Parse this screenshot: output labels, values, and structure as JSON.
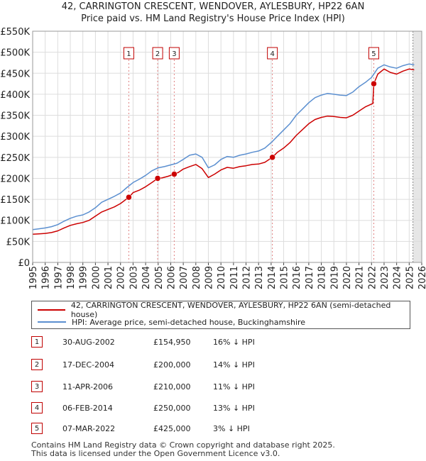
{
  "title_line1": "42, CARRINGTON CRESCENT, WENDOVER, AYLESBURY, HP22 6AN",
  "title_line2": "Price paid vs. HM Land Registry's House Price Index (HPI)",
  "legend": {
    "red_label": "42, CARRINGTON CRESCENT, WENDOVER, AYLESBURY, HP22 6AN (semi-detached house)",
    "blue_label": "HPI: Average price, semi-detached house, Buckinghamshire"
  },
  "colors": {
    "red": "#cc0000",
    "blue": "#5b8fd0",
    "grid": "#dddddd",
    "band": "#eef2fa"
  },
  "sales": [
    {
      "num": "1",
      "date": "30-AUG-2002",
      "price": "£154,950",
      "pct": "16% ↓ HPI",
      "year": 2002.66,
      "value": 154950
    },
    {
      "num": "2",
      "date": "17-DEC-2004",
      "price": "£200,000",
      "pct": "14% ↓ HPI",
      "year": 2004.96,
      "value": 200000
    },
    {
      "num": "3",
      "date": "11-APR-2006",
      "price": "£210,000",
      "pct": "11% ↓ HPI",
      "year": 2006.28,
      "value": 210000
    },
    {
      "num": "4",
      "date": "06-FEB-2014",
      "price": "£250,000",
      "pct": "13% ↓ HPI",
      "year": 2014.1,
      "value": 250000
    },
    {
      "num": "5",
      "date": "07-MAR-2022",
      "price": "£425,000",
      "pct": "3% ↓ HPI",
      "year": 2022.18,
      "value": 425000
    }
  ],
  "footer_line1": "Contains HM Land Registry data © Crown copyright and database right 2025.",
  "footer_line2": "This data is licensed under the Open Government Licence v3.0.",
  "chart_data": {
    "type": "line",
    "title": "Price paid vs. HM Land Registry's House Price Index (HPI)",
    "xlim": [
      1995,
      2026
    ],
    "ylim": [
      0,
      550000
    ],
    "x_ticks": [
      "1995",
      "1996",
      "1997",
      "1998",
      "1999",
      "2000",
      "2001",
      "2002",
      "2003",
      "2004",
      "2005",
      "2006",
      "2007",
      "2008",
      "2009",
      "2010",
      "2011",
      "2012",
      "2013",
      "2014",
      "2015",
      "2016",
      "2017",
      "2018",
      "2019",
      "2020",
      "2021",
      "2022",
      "2023",
      "2024",
      "2025",
      "2026"
    ],
    "y_ticks": [
      {
        "value": 0,
        "label": "£0"
      },
      {
        "value": 50000,
        "label": "£50K"
      },
      {
        "value": 100000,
        "label": "£100K"
      },
      {
        "value": 150000,
        "label": "£150K"
      },
      {
        "value": 200000,
        "label": "£200K"
      },
      {
        "value": 250000,
        "label": "£250K"
      },
      {
        "value": 300000,
        "label": "£300K"
      },
      {
        "value": 350000,
        "label": "£350K"
      },
      {
        "value": 400000,
        "label": "£400K"
      },
      {
        "value": 450000,
        "label": "£450K"
      },
      {
        "value": 500000,
        "label": "£500K"
      },
      {
        "value": 550000,
        "label": "£550K"
      }
    ],
    "shade_from_year": 2025.3,
    "series": [
      {
        "name": "HPI: Average price, semi-detached house, Buckinghamshire",
        "color": "#5b8fd0",
        "points": [
          [
            1995,
            78000
          ],
          [
            1995.5,
            80000
          ],
          [
            1996,
            82000
          ],
          [
            1996.5,
            85000
          ],
          [
            1997,
            90000
          ],
          [
            1997.5,
            98000
          ],
          [
            1998,
            105000
          ],
          [
            1998.5,
            110000
          ],
          [
            1999,
            113000
          ],
          [
            1999.5,
            120000
          ],
          [
            2000,
            130000
          ],
          [
            2000.5,
            143000
          ],
          [
            2001,
            150000
          ],
          [
            2001.5,
            157000
          ],
          [
            2002,
            165000
          ],
          [
            2002.5,
            178000
          ],
          [
            2003,
            190000
          ],
          [
            2003.5,
            198000
          ],
          [
            2004,
            207000
          ],
          [
            2004.5,
            218000
          ],
          [
            2005,
            225000
          ],
          [
            2005.5,
            228000
          ],
          [
            2006,
            232000
          ],
          [
            2006.5,
            236000
          ],
          [
            2007,
            245000
          ],
          [
            2007.5,
            255000
          ],
          [
            2008,
            258000
          ],
          [
            2008.5,
            250000
          ],
          [
            2009,
            225000
          ],
          [
            2009.5,
            232000
          ],
          [
            2010,
            245000
          ],
          [
            2010.5,
            252000
          ],
          [
            2011,
            250000
          ],
          [
            2011.5,
            255000
          ],
          [
            2012,
            258000
          ],
          [
            2012.5,
            262000
          ],
          [
            2013,
            265000
          ],
          [
            2013.5,
            272000
          ],
          [
            2014,
            285000
          ],
          [
            2014.5,
            300000
          ],
          [
            2015,
            315000
          ],
          [
            2015.5,
            330000
          ],
          [
            2016,
            350000
          ],
          [
            2016.5,
            365000
          ],
          [
            2017,
            380000
          ],
          [
            2017.5,
            392000
          ],
          [
            2018,
            398000
          ],
          [
            2018.5,
            402000
          ],
          [
            2019,
            400000
          ],
          [
            2019.5,
            398000
          ],
          [
            2020,
            397000
          ],
          [
            2020.5,
            405000
          ],
          [
            2021,
            418000
          ],
          [
            2021.5,
            428000
          ],
          [
            2022,
            440000
          ],
          [
            2022.5,
            462000
          ],
          [
            2023,
            470000
          ],
          [
            2023.5,
            465000
          ],
          [
            2024,
            462000
          ],
          [
            2024.5,
            468000
          ],
          [
            2025,
            472000
          ],
          [
            2025.4,
            470000
          ]
        ]
      },
      {
        "name": "42, CARRINGTON CRESCENT, WENDOVER, AYLESBURY, HP22 6AN (semi-detached house)",
        "color": "#cc0000",
        "points": [
          [
            1995,
            67000
          ],
          [
            1995.5,
            68000
          ],
          [
            1996,
            69000
          ],
          [
            1996.5,
            71000
          ],
          [
            1997,
            75000
          ],
          [
            1997.5,
            82000
          ],
          [
            1998,
            88000
          ],
          [
            1998.5,
            92000
          ],
          [
            1999,
            95000
          ],
          [
            1999.5,
            100000
          ],
          [
            2000,
            110000
          ],
          [
            2000.5,
            120000
          ],
          [
            2001,
            126000
          ],
          [
            2001.5,
            132000
          ],
          [
            2002,
            140000
          ],
          [
            2002.66,
            154950
          ],
          [
            2003,
            166000
          ],
          [
            2003.5,
            172000
          ],
          [
            2004,
            180000
          ],
          [
            2004.5,
            190000
          ],
          [
            2004.96,
            200000
          ],
          [
            2005.3,
            201000
          ],
          [
            2005.8,
            205000
          ],
          [
            2006.28,
            210000
          ],
          [
            2006.6,
            214000
          ],
          [
            2007,
            222000
          ],
          [
            2007.5,
            228000
          ],
          [
            2008,
            233000
          ],
          [
            2008.5,
            223000
          ],
          [
            2009,
            202000
          ],
          [
            2009.5,
            210000
          ],
          [
            2010,
            220000
          ],
          [
            2010.5,
            226000
          ],
          [
            2011,
            224000
          ],
          [
            2011.5,
            228000
          ],
          [
            2012,
            230000
          ],
          [
            2012.5,
            233000
          ],
          [
            2013,
            234000
          ],
          [
            2013.5,
            238000
          ],
          [
            2014.1,
            250000
          ],
          [
            2014.5,
            262000
          ],
          [
            2015,
            272000
          ],
          [
            2015.5,
            285000
          ],
          [
            2016,
            302000
          ],
          [
            2016.5,
            316000
          ],
          [
            2017,
            330000
          ],
          [
            2017.5,
            340000
          ],
          [
            2018,
            345000
          ],
          [
            2018.5,
            348000
          ],
          [
            2019,
            347000
          ],
          [
            2019.5,
            345000
          ],
          [
            2020,
            344000
          ],
          [
            2020.5,
            350000
          ],
          [
            2021,
            360000
          ],
          [
            2021.5,
            370000
          ],
          [
            2022.1,
            378000
          ],
          [
            2022.18,
            425000
          ],
          [
            2022.5,
            448000
          ],
          [
            2023,
            460000
          ],
          [
            2023.5,
            452000
          ],
          [
            2024,
            448000
          ],
          [
            2024.5,
            455000
          ],
          [
            2025,
            460000
          ],
          [
            2025.4,
            458000
          ]
        ]
      }
    ]
  }
}
